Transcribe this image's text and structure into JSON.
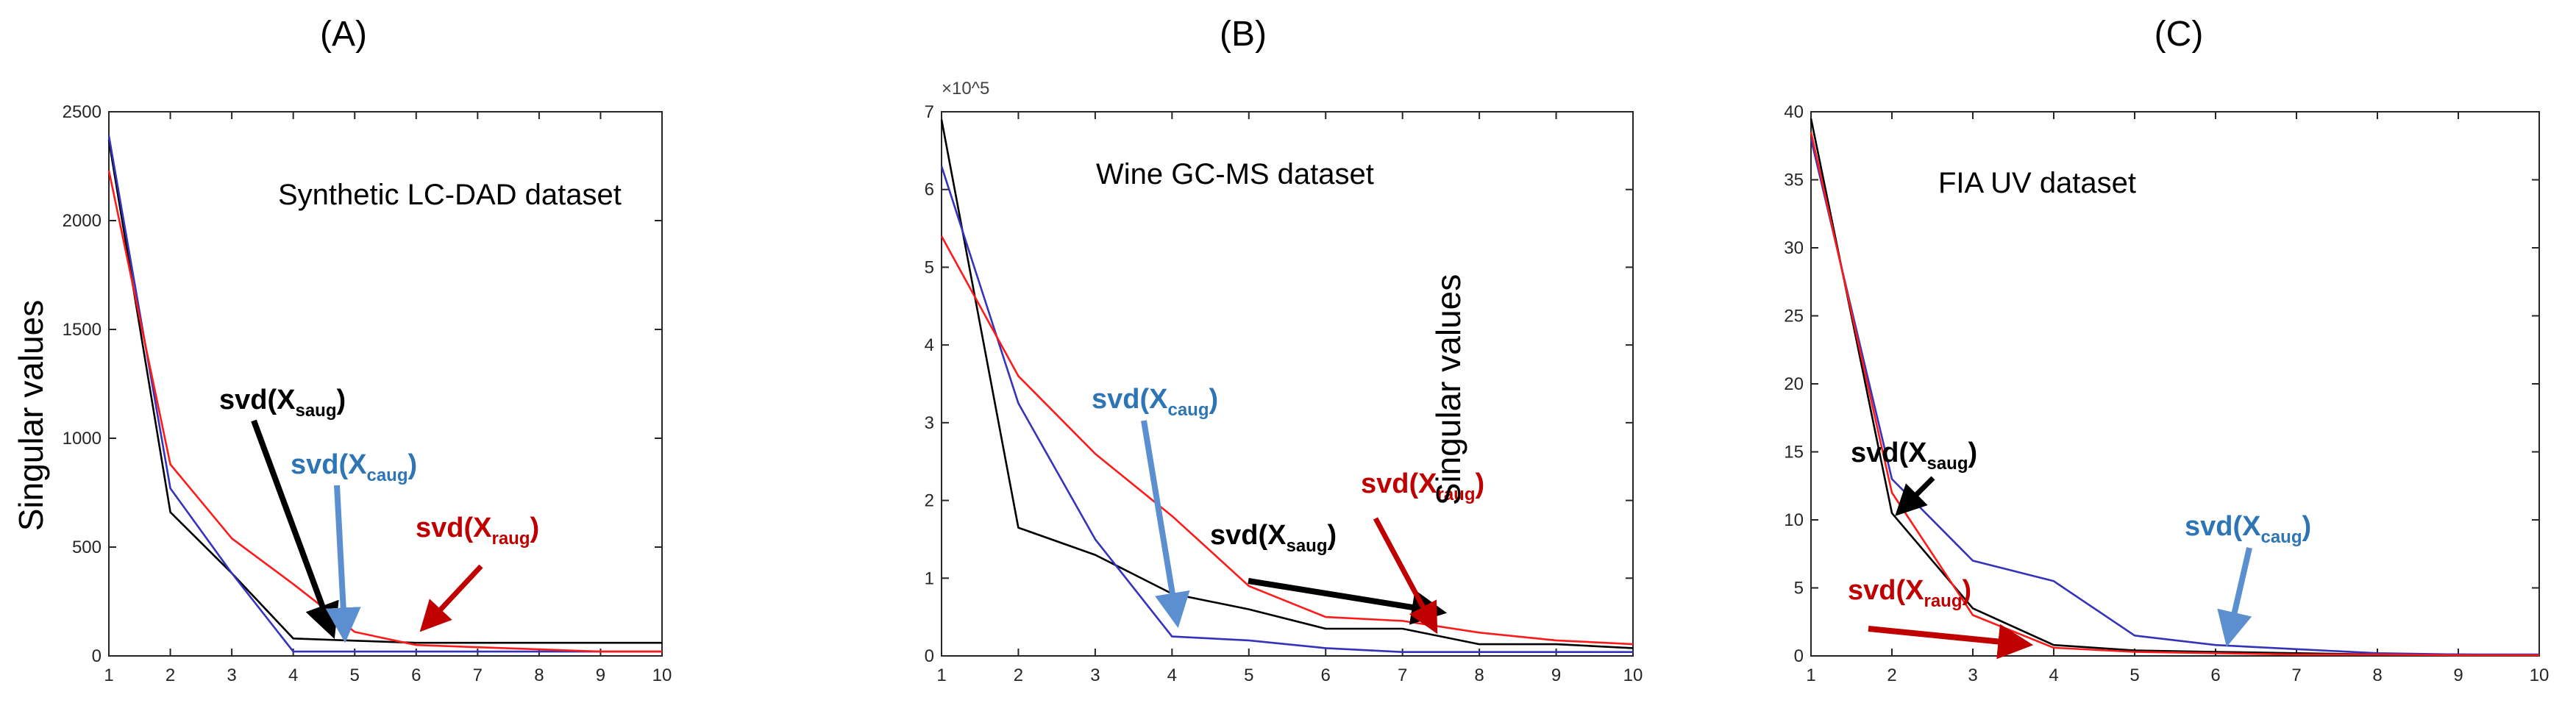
{
  "colors": {
    "black_series": "#000000",
    "blue_series": "#3333bb",
    "red_series": "#ff1a1a",
    "label_black": "#000000",
    "label_blue": "#2e75b6",
    "label_red": "#c00000",
    "arrow_black": "#000000",
    "arrow_blue": "#5b8fd0",
    "arrow_red": "#c00000"
  },
  "chart_data": [
    {
      "type": "line",
      "panel_label": "(A)",
      "title": "Synthetic LC-DAD dataset",
      "xlabel": "",
      "ylabel": "Singular values",
      "xlim": [
        1,
        10
      ],
      "ylim": [
        0,
        2500
      ],
      "grid": false,
      "multiplier": "",
      "x_ticks": [
        "1",
        "2",
        "3",
        "4",
        "5",
        "6",
        "7",
        "8",
        "9",
        "10"
      ],
      "y_ticks": [
        "0",
        "500",
        "1000",
        "1500",
        "2000",
        "2500"
      ],
      "x": [
        1,
        2,
        3,
        4,
        5,
        6,
        7,
        8,
        9,
        10
      ],
      "series": [
        {
          "name": "svd(X_saug)",
          "color_key": "black_series",
          "values": [
            2370,
            660,
            380,
            80,
            70,
            60,
            60,
            60,
            60,
            60
          ]
        },
        {
          "name": "svd(X_caug)",
          "color_key": "blue_series",
          "values": [
            2390,
            770,
            380,
            20,
            20,
            20,
            20,
            20,
            20,
            20
          ]
        },
        {
          "name": "svd(X_raug)",
          "color_key": "red_series",
          "values": [
            2230,
            880,
            540,
            330,
            110,
            50,
            40,
            30,
            20,
            20
          ]
        }
      ],
      "annotations": [
        {
          "base": "svd(X",
          "sub": "saug",
          "close": ")",
          "color_key": "label_black"
        },
        {
          "base": "svd(X",
          "sub": "caug",
          "close": ")",
          "color_key": "label_blue"
        },
        {
          "base": "svd(X",
          "sub": "raug",
          "close": ")",
          "color_key": "label_red"
        }
      ]
    },
    {
      "type": "line",
      "panel_label": "(B)",
      "title": "Wine GC-MS dataset",
      "xlabel": "",
      "ylabel": "",
      "xlim": [
        1,
        10
      ],
      "ylim": [
        0,
        7
      ],
      "grid": false,
      "multiplier": "×10^5",
      "x_ticks": [
        "1",
        "2",
        "3",
        "4",
        "5",
        "6",
        "7",
        "8",
        "9",
        "10"
      ],
      "y_ticks": [
        "0",
        "1",
        "2",
        "3",
        "4",
        "5",
        "6",
        "7"
      ],
      "x": [
        1,
        2,
        3,
        4,
        5,
        6,
        7,
        8,
        9,
        10
      ],
      "series": [
        {
          "name": "svd(X_saug)",
          "color_key": "black_series",
          "values": [
            6.9,
            1.65,
            1.3,
            0.8,
            0.6,
            0.35,
            0.35,
            0.15,
            0.15,
            0.1
          ]
        },
        {
          "name": "svd(X_caug)",
          "color_key": "blue_series",
          "values": [
            6.3,
            3.25,
            1.5,
            0.25,
            0.2,
            0.1,
            0.05,
            0.05,
            0.05,
            0.05
          ]
        },
        {
          "name": "svd(X_raug)",
          "color_key": "red_series",
          "values": [
            5.4,
            3.6,
            2.6,
            1.8,
            0.9,
            0.5,
            0.45,
            0.3,
            0.2,
            0.15
          ]
        }
      ],
      "annotations": [
        {
          "base": "svd(X",
          "sub": "caug",
          "close": ")",
          "color_key": "label_blue"
        },
        {
          "base": "svd(X",
          "sub": "saug",
          "close": ")",
          "color_key": "label_black"
        },
        {
          "base": "svd(X",
          "sub": "raug",
          "close": ")",
          "color_key": "label_red"
        },
        {
          "text": "Singular values",
          "color_key": "label_black"
        }
      ]
    },
    {
      "type": "line",
      "panel_label": "(C)",
      "title": "FIA UV dataset",
      "xlabel": "",
      "ylabel": "",
      "xlim": [
        1,
        10
      ],
      "ylim": [
        0,
        40
      ],
      "grid": false,
      "multiplier": "",
      "x_ticks": [
        "1",
        "2",
        "3",
        "4",
        "5",
        "6",
        "7",
        "8",
        "9",
        "10"
      ],
      "y_ticks": [
        "0",
        "5",
        "10",
        "15",
        "20",
        "25",
        "30",
        "35",
        "40"
      ],
      "x": [
        1,
        2,
        3,
        4,
        5,
        6,
        7,
        8,
        9,
        10
      ],
      "series": [
        {
          "name": "svd(X_saug)",
          "color_key": "black_series",
          "values": [
            39.5,
            10.5,
            3.5,
            0.8,
            0.4,
            0.3,
            0.2,
            0.1,
            0.1,
            0.05
          ]
        },
        {
          "name": "svd(X_caug)",
          "color_key": "blue_series",
          "values": [
            38,
            13,
            7,
            5.5,
            1.5,
            0.8,
            0.5,
            0.2,
            0.1,
            0.1
          ]
        },
        {
          "name": "svd(X_raug)",
          "color_key": "red_series",
          "values": [
            38.5,
            12,
            3,
            0.6,
            0.3,
            0.2,
            0.1,
            0.1,
            0.05,
            0.05
          ]
        }
      ],
      "annotations": [
        {
          "base": "svd(X",
          "sub": "saug",
          "close": ")",
          "color_key": "label_black"
        },
        {
          "base": "svd(X",
          "sub": "caug",
          "close": ")",
          "color_key": "label_blue"
        },
        {
          "base": "svd(X",
          "sub": "raug",
          "close": ")",
          "color_key": "label_red"
        }
      ]
    }
  ]
}
